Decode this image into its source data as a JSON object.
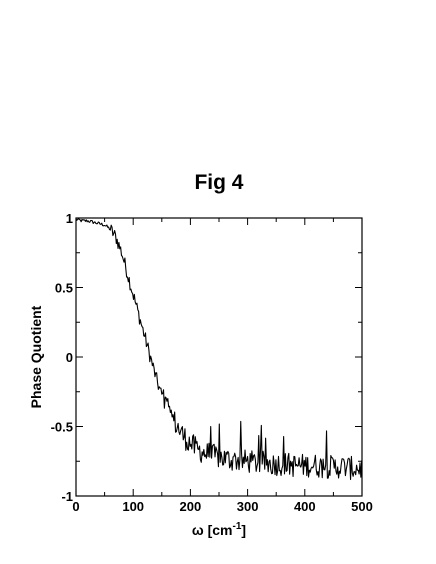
{
  "chart_data": {
    "type": "line",
    "title": "Fig 4",
    "xlabel": "ω   [cm",
    "xlabel_superscript": "-1",
    "xlabel_suffix": "]",
    "ylabel": "Phase Quotient",
    "xlim": [
      0,
      500
    ],
    "ylim": [
      -1,
      1
    ],
    "x_ticks": [
      0,
      100,
      200,
      300,
      400,
      500
    ],
    "y_ticks": [
      -1,
      -0.5,
      0,
      0.5,
      1
    ],
    "x_tick_labels": [
      "0",
      "100",
      "200",
      "300",
      "400",
      "500"
    ],
    "y_tick_labels": [
      "-1",
      "-0.5",
      "0",
      "0.5",
      "1"
    ],
    "grid": false,
    "legend": "none",
    "line_color": "#000000",
    "series": [
      {
        "x": [
          0,
          10,
          20,
          30,
          40,
          50,
          60,
          70,
          80,
          90,
          100,
          110,
          120,
          130,
          140,
          150,
          160,
          170,
          180,
          190,
          200,
          210,
          220,
          230,
          240,
          250,
          260,
          270,
          280,
          290,
          300,
          310,
          320,
          330,
          340,
          350,
          360,
          370,
          380,
          390,
          400,
          410,
          420,
          430,
          440,
          450,
          460,
          470,
          480,
          490,
          500
        ],
        "y": [
          0.99,
          0.98,
          0.98,
          0.97,
          0.96,
          0.95,
          0.92,
          0.86,
          0.75,
          0.6,
          0.45,
          0.3,
          0.15,
          0.0,
          -0.15,
          -0.28,
          -0.38,
          -0.45,
          -0.52,
          -0.58,
          -0.62,
          -0.66,
          -0.68,
          -0.7,
          -0.71,
          -0.72,
          -0.73,
          -0.74,
          -0.74,
          -0.75,
          -0.75,
          -0.76,
          -0.76,
          -0.76,
          -0.77,
          -0.77,
          -0.77,
          -0.77,
          -0.78,
          -0.78,
          -0.78,
          -0.78,
          -0.78,
          -0.79,
          -0.79,
          -0.79,
          -0.79,
          -0.79,
          -0.8,
          -0.8,
          -0.8
        ]
      }
    ]
  }
}
